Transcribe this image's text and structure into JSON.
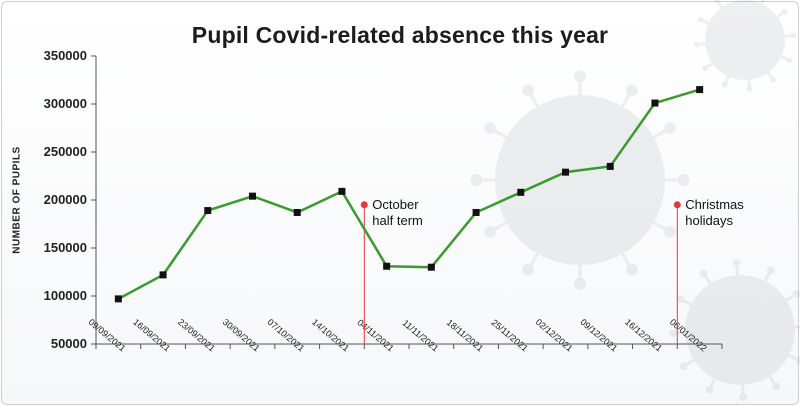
{
  "chart_data": {
    "type": "line",
    "title": "Pupil Covid-related absence this year",
    "ylabel": "NUMBER OF PUPILS",
    "xlabel": "",
    "ylim": [
      50000,
      350000
    ],
    "yticks": [
      "50000",
      "100000",
      "150000",
      "200000",
      "250000",
      "300000",
      "350000"
    ],
    "categories": [
      "09/09/2021",
      "16/09/2021",
      "23/09/2021",
      "30/09/2021",
      "07/10/2021",
      "14/10/2021",
      "04/11/2021",
      "11/11/2021",
      "18/11/2021",
      "25/11/2021",
      "02/12/2021",
      "09/12/2021",
      "16/12/2021",
      "06/01/2022"
    ],
    "series": [
      {
        "values": [
          97000,
          122000,
          189000,
          204000,
          187000,
          209000,
          131000,
          130000,
          187000,
          208000,
          229000,
          235000,
          301000,
          315000
        ]
      }
    ],
    "line_color": "#3a9a2e",
    "marker_color": "#111111",
    "annotation_color": "#e53935",
    "grid": false,
    "annotations": [
      {
        "text": "October\nhalf term",
        "between": [
          5,
          6
        ],
        "y": 195000
      },
      {
        "text": "Christmas\nholidays",
        "between": [
          12,
          13
        ],
        "y": 195000
      }
    ]
  }
}
